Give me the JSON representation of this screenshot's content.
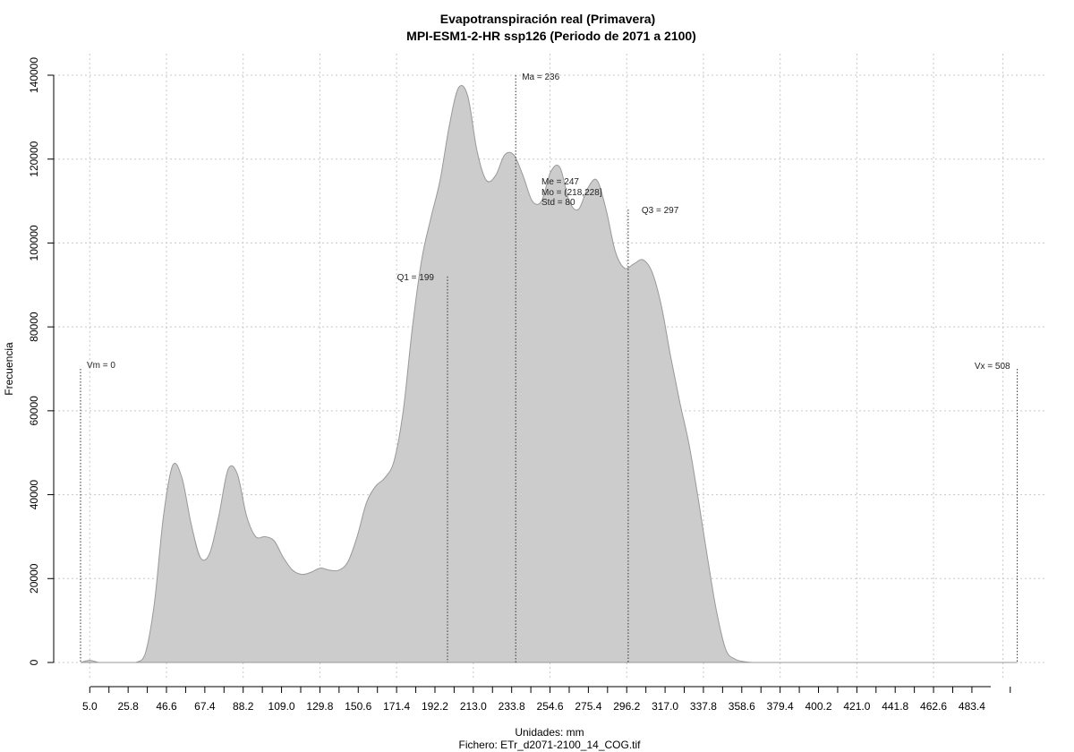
{
  "chart_data": {
    "type": "area",
    "title": "Evapotranspiración real (Primavera)",
    "subtitle": "MPI-ESM1-2-HR ssp126 (Periodo de 2071 a 2100)",
    "xlabel": "Unidades: mm",
    "footer": "Fichero: ETr_d2071-2100_14_COG.tif",
    "ylabel": "Frecuencia",
    "xlim": [
      0,
      508
    ],
    "ylim": [
      0,
      140000
    ],
    "x_ticks": [
      "5.0",
      "25.8",
      "46.6",
      "67.4",
      "88.2",
      "109.0",
      "129.8",
      "150.6",
      "171.4",
      "192.2",
      "213.0",
      "233.8",
      "254.6",
      "275.4",
      "296.2",
      "317.0",
      "337.8",
      "358.6",
      "379.4",
      "400.2",
      "421.0",
      "441.8",
      "462.6",
      "483.4"
    ],
    "y_ticks": [
      "0",
      "20000",
      "40000",
      "60000",
      "80000",
      "100000",
      "120000",
      "140000"
    ],
    "grid": true,
    "fill_color": "#cccccc",
    "line_color": "#999999",
    "x": [
      0,
      5,
      10,
      15,
      20,
      25,
      30,
      35,
      40,
      45,
      50,
      55,
      60,
      65,
      70,
      75,
      80,
      85,
      90,
      95,
      100,
      105,
      110,
      115,
      120,
      125,
      130,
      135,
      140,
      145,
      150,
      155,
      160,
      165,
      170,
      175,
      180,
      185,
      190,
      195,
      200,
      205,
      210,
      215,
      220,
      225,
      230,
      235,
      240,
      245,
      250,
      255,
      260,
      265,
      270,
      275,
      280,
      285,
      290,
      295,
      300,
      305,
      310,
      315,
      320,
      325,
      330,
      335,
      340,
      345,
      350,
      355,
      360,
      365,
      370,
      375,
      380,
      385,
      390,
      395,
      400,
      410,
      450,
      508
    ],
    "y": [
      0,
      500,
      0,
      0,
      0,
      0,
      0,
      2000,
      14000,
      35000,
      47000,
      44000,
      33000,
      25000,
      26000,
      35000,
      46000,
      45000,
      35000,
      30000,
      30000,
      29000,
      25000,
      22000,
      21000,
      21500,
      22500,
      22000,
      22000,
      24000,
      30000,
      38000,
      42000,
      44000,
      48000,
      60000,
      80000,
      96000,
      106000,
      115000,
      128000,
      137000,
      135000,
      122000,
      115000,
      116000,
      121000,
      121000,
      116000,
      110000,
      110000,
      117000,
      118000,
      110000,
      108000,
      113000,
      115000,
      108000,
      98000,
      94000,
      95000,
      96000,
      93000,
      85000,
      73000,
      62000,
      52000,
      39000,
      25000,
      12000,
      3000,
      800,
      200,
      0,
      0,
      0,
      0,
      0,
      0,
      0,
      0,
      0,
      0,
      0
    ],
    "annotations": [
      {
        "label": "Vm = 0",
        "x": 0,
        "y_top": 70000
      },
      {
        "label": "Q1 = 199",
        "x": 199,
        "y_top": 92000
      },
      {
        "label": "Ma = 236",
        "x": 236,
        "y_top": 140000
      },
      {
        "label": "Q3 = 297",
        "x": 297,
        "y_top": 108000
      },
      {
        "label": "Vx = 508",
        "x": 508,
        "y_top": 70000
      }
    ],
    "stats": [
      "Me = 247",
      "Mo = (218,228]",
      "Std = 80"
    ]
  }
}
